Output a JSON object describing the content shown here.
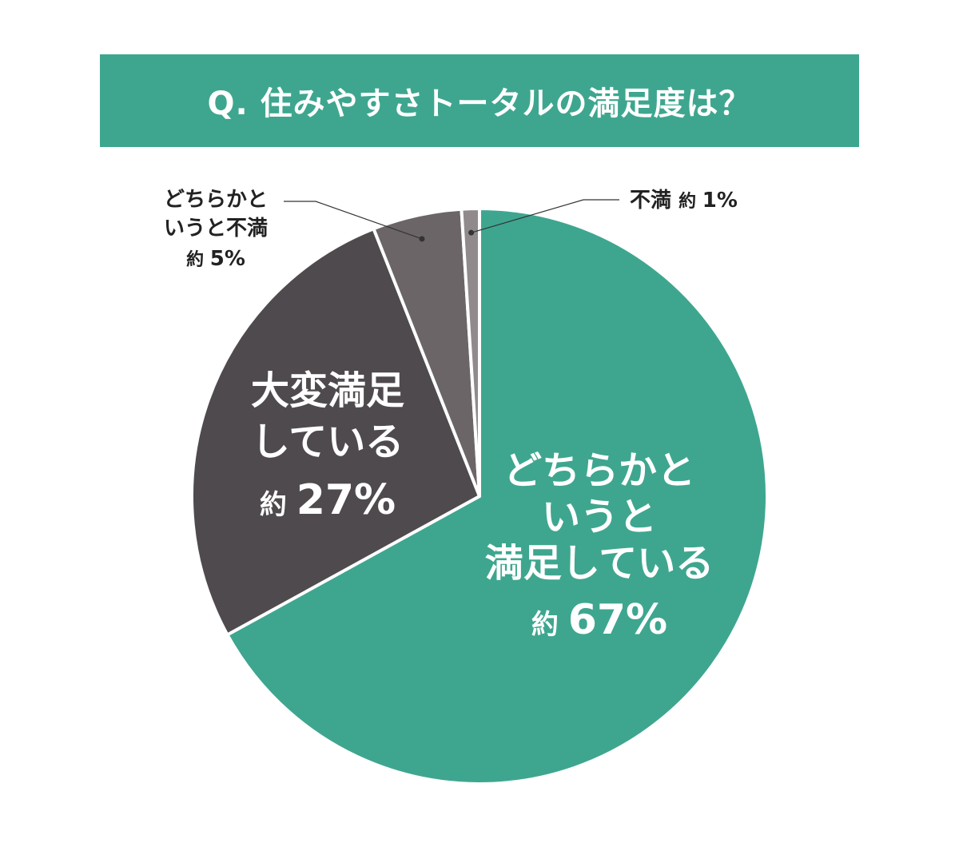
{
  "title": "Q. 住みやすさトータルの満足度は？",
  "colors": {
    "banner": "#3ea68f",
    "background": "#ffffff",
    "separator": "#ffffff",
    "leader": "#333333"
  },
  "chart_data": {
    "type": "pie",
    "title": "Q. 住みやすさトータルの満足度は？",
    "start": "12 o'clock",
    "direction": "clockwise",
    "slices": [
      {
        "lines": [
          "どちらかと",
          "いうと",
          "満足している"
        ],
        "prefix": "約",
        "value_label": "67%",
        "value": 67,
        "color": "#3ea68f"
      },
      {
        "lines": [
          "大変満足",
          "している"
        ],
        "prefix": "約",
        "value_label": "27%",
        "value": 27,
        "color": "#4f4a4e"
      },
      {
        "lines": [
          "どちらかと",
          "いうと不満"
        ],
        "prefix": "約",
        "value_label": "5%",
        "value": 5,
        "color": "#6b6568"
      },
      {
        "lines": [
          "不満"
        ],
        "prefix": "約",
        "value_label": "1%",
        "value": 1,
        "color": "#908a8d"
      }
    ]
  }
}
